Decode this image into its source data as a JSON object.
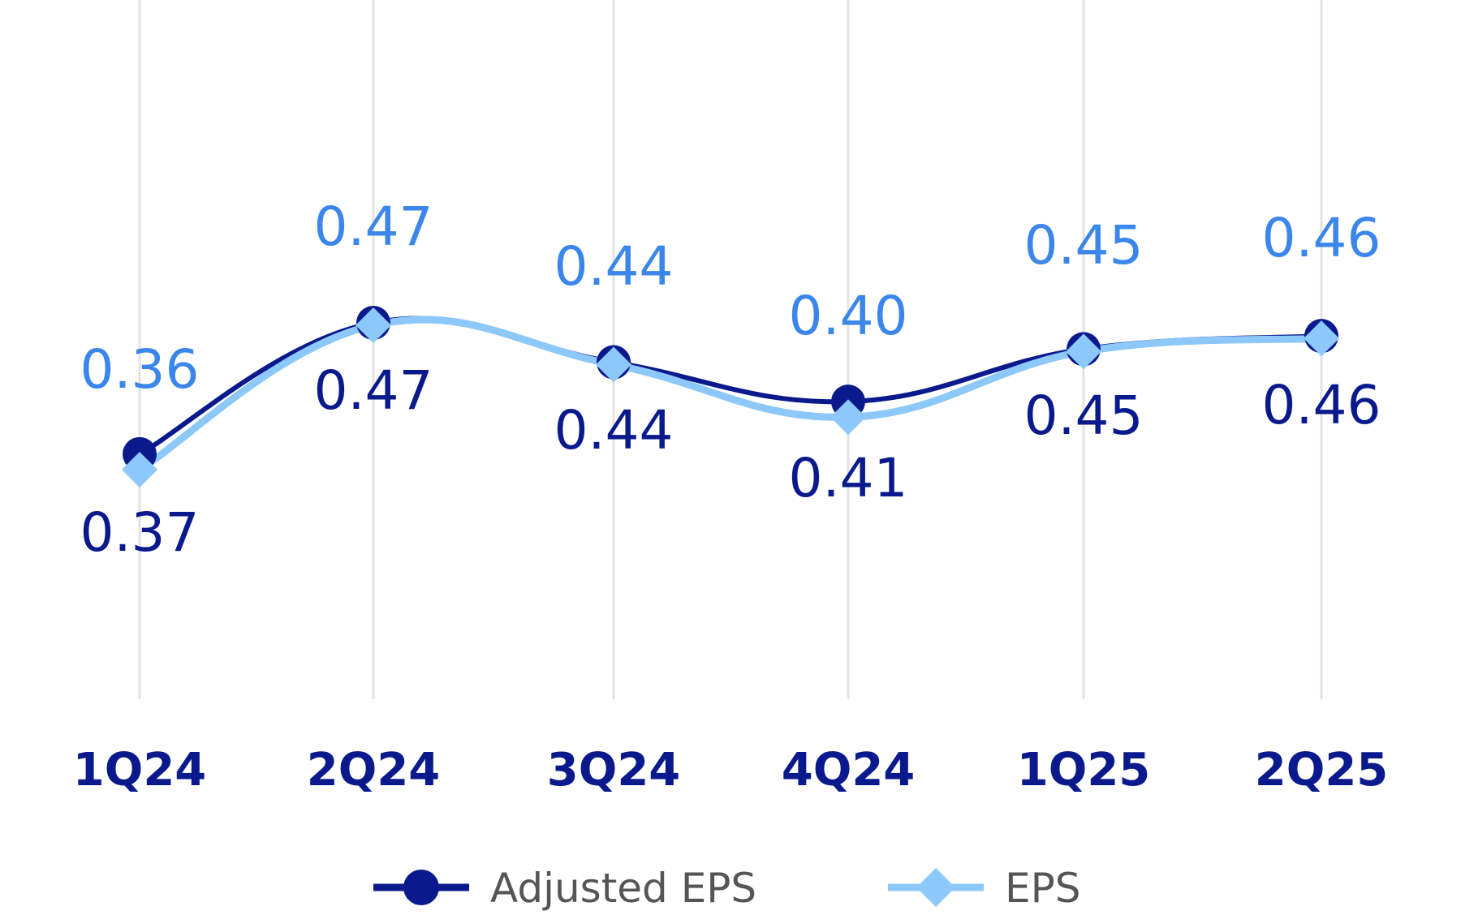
{
  "chart_data": {
    "type": "line",
    "categories": [
      "1Q24",
      "2Q24",
      "3Q24",
      "4Q24",
      "1Q25",
      "2Q25"
    ],
    "series": [
      {
        "name": "Adjusted EPS",
        "values": [
          0.37,
          0.47,
          0.44,
          0.41,
          0.45,
          0.46
        ],
        "labels": [
          "0.37",
          "0.47",
          "0.44",
          "0.41",
          "0.45",
          "0.46"
        ],
        "color": "#0a1a8c",
        "marker": "circle"
      },
      {
        "name": "EPS",
        "values": [
          0.36,
          0.47,
          0.44,
          0.4,
          0.45,
          0.46
        ],
        "labels": [
          "0.36",
          "0.47",
          "0.44",
          "0.40",
          "0.45",
          "0.46"
        ],
        "color": "#8cc8fa",
        "label_color": "#3b86ea",
        "marker": "diamond"
      }
    ],
    "ylim": [
      0.25,
      0.55
    ],
    "grid": "vertical",
    "legend_position": "bottom-center",
    "tick_color": "#0a1a8c"
  }
}
